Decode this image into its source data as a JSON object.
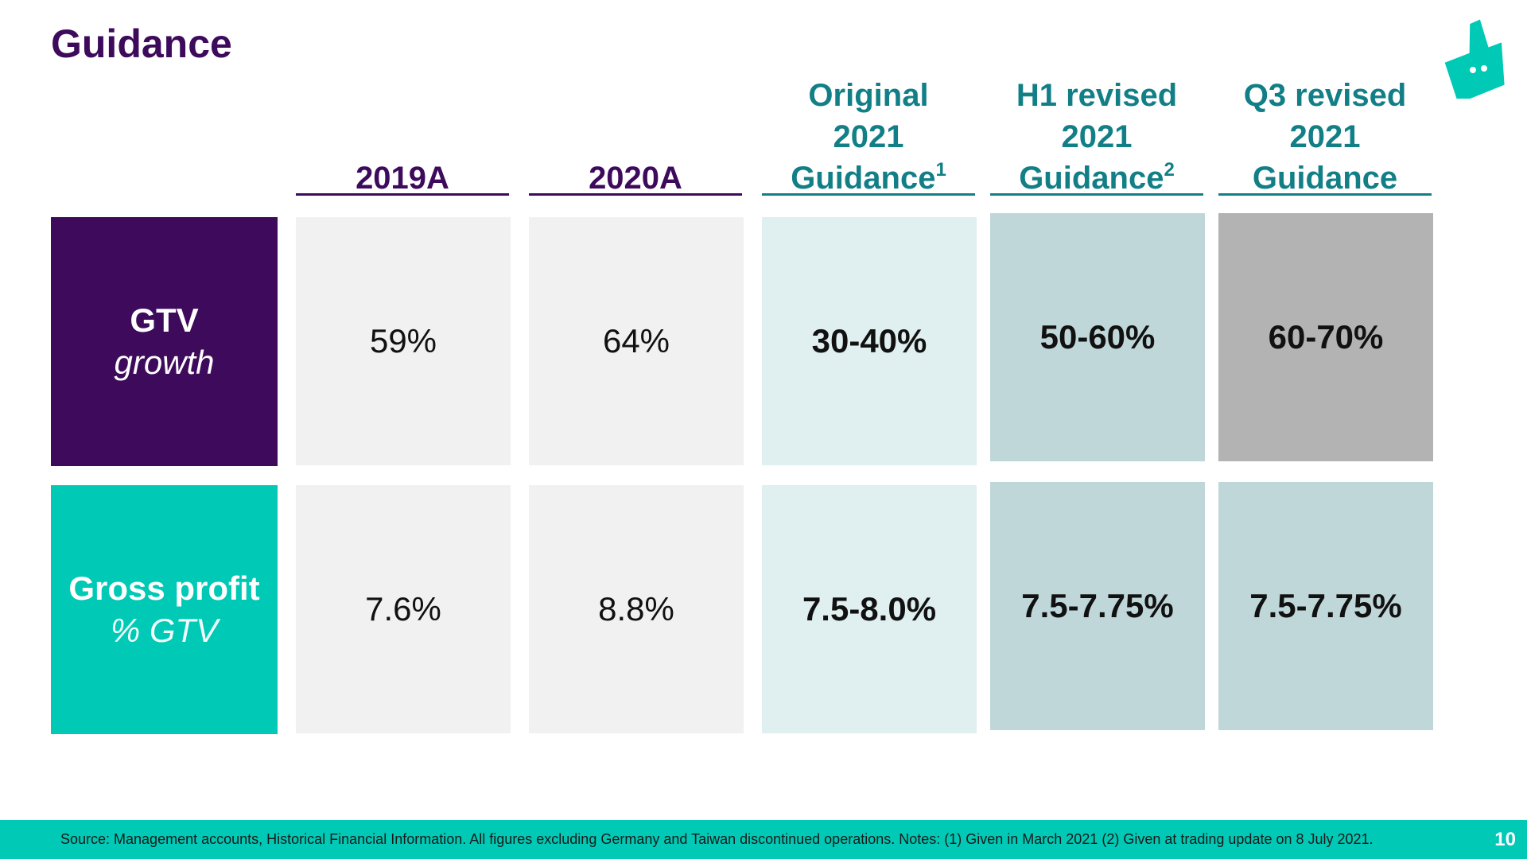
{
  "title": "Guidance",
  "columns": [
    {
      "lines": [
        "2019A"
      ],
      "sup": ""
    },
    {
      "lines": [
        "2020A"
      ],
      "sup": ""
    },
    {
      "lines": [
        "Original",
        "2021",
        "Guidance"
      ],
      "sup": "1"
    },
    {
      "lines": [
        "H1 revised",
        "2021",
        "Guidance"
      ],
      "sup": "2"
    },
    {
      "lines": [
        "Q3 revised",
        "2021",
        "Guidance"
      ],
      "sup": ""
    }
  ],
  "rows": [
    {
      "label_main": "GTV",
      "label_sub": "growth",
      "values": [
        "59%",
        "64%",
        "30-40%",
        "50-60%",
        "60-70%"
      ]
    },
    {
      "label_main": "Gross profit",
      "label_sub": "% GTV",
      "values": [
        "7.6%",
        "8.8%",
        "7.5-8.0%",
        "7.5-7.75%",
        "7.5-7.75%"
      ]
    }
  ],
  "footer": {
    "note": "Source: Management accounts, Historical Financial Information. All figures excluding Germany and Taiwan discontinued operations. Notes: (1) Given in March 2021  (2) Given at trading update on 8 July 2021.",
    "page_number": "10"
  },
  "icons": {
    "logo": "deliveroo-kangaroo-logo-icon"
  },
  "colors": {
    "brand_purple": "#3d0a5c",
    "brand_teal": "#00c9b5",
    "header_teal": "#127f87"
  }
}
